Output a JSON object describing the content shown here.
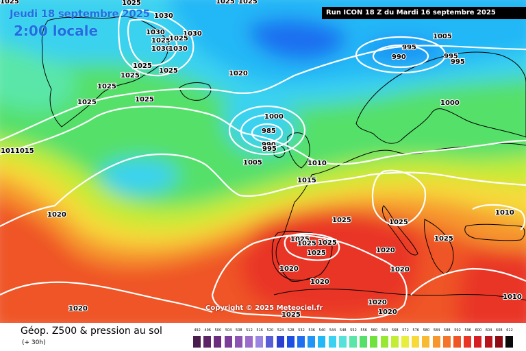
{
  "header": {
    "date_title": "Jeudi 18 septembre 2025",
    "time_title": "2:00 locale",
    "run_info": "Run ICON 18 Z du Mardi 16 septembre 2025"
  },
  "copyright": "Copyright © 2025 Meteociel.fr",
  "legend": {
    "title": "Géop. Z500 & pression au sol",
    "subtitle": "(+ 30h)",
    "scale": [
      {
        "label": "492",
        "color": "#4a1d4f"
      },
      {
        "label": "496",
        "color": "#5c2565"
      },
      {
        "label": "500",
        "color": "#6d2d7e"
      },
      {
        "label": "504",
        "color": "#7c3f99"
      },
      {
        "label": "508",
        "color": "#8c55b3"
      },
      {
        "label": "512",
        "color": "#9c6ccb"
      },
      {
        "label": "516",
        "color": "#9a86e0"
      },
      {
        "label": "520",
        "color": "#5a5ed6"
      },
      {
        "label": "524",
        "color": "#2d3fcf"
      },
      {
        "label": "528",
        "color": "#1d4fe3"
      },
      {
        "label": "532",
        "color": "#1f6ef0"
      },
      {
        "label": "536",
        "color": "#1f95f5"
      },
      {
        "label": "540",
        "color": "#22b7f6"
      },
      {
        "label": "544",
        "color": "#3ad2f0"
      },
      {
        "label": "548",
        "color": "#55e2da"
      },
      {
        "label": "552",
        "color": "#5ae6a8"
      },
      {
        "label": "556",
        "color": "#55e06a"
      },
      {
        "label": "560",
        "color": "#6fe23d"
      },
      {
        "label": "564",
        "color": "#98e833"
      },
      {
        "label": "568",
        "color": "#c3ec35"
      },
      {
        "label": "572",
        "color": "#e8ee3c"
      },
      {
        "label": "576",
        "color": "#f7d93a"
      },
      {
        "label": "580",
        "color": "#f8b933"
      },
      {
        "label": "584",
        "color": "#f6962d"
      },
      {
        "label": "588",
        "color": "#f3742a"
      },
      {
        "label": "592",
        "color": "#ef5427"
      },
      {
        "label": "596",
        "color": "#e93525"
      },
      {
        "label": "600",
        "color": "#d61f22"
      },
      {
        "label": "604",
        "color": "#b8141c"
      },
      {
        "label": "608",
        "color": "#8e0b14"
      },
      {
        "label": "612",
        "color": "#0a0a0a"
      }
    ]
  },
  "map": {
    "isobar_labels": [
      {
        "text": "1025"
      },
      {
        "text": "1030"
      },
      {
        "text": "1030"
      },
      {
        "text": "1030"
      },
      {
        "text": "1025"
      },
      {
        "text": "1025"
      },
      {
        "text": "1030"
      },
      {
        "text": "1030"
      },
      {
        "text": "1025"
      },
      {
        "text": "1025"
      },
      {
        "text": "1025"
      },
      {
        "text": "1025"
      },
      {
        "text": "1025"
      },
      {
        "text": "1025"
      },
      {
        "text": "1025"
      },
      {
        "text": "1025"
      },
      {
        "text": "1025"
      },
      {
        "text": "1005"
      },
      {
        "text": "995"
      },
      {
        "text": "990"
      },
      {
        "text": "995"
      },
      {
        "text": "995"
      },
      {
        "text": "1020"
      },
      {
        "text": "1000"
      },
      {
        "text": "1000"
      },
      {
        "text": "985"
      },
      {
        "text": "990"
      },
      {
        "text": "995"
      },
      {
        "text": "1005"
      },
      {
        "text": "1010"
      },
      {
        "text": "1015"
      },
      {
        "text": "1010"
      },
      {
        "text": "1011015"
      },
      {
        "text": "1020"
      },
      {
        "text": "1025"
      },
      {
        "text": "1025"
      },
      {
        "text": "1025"
      },
      {
        "text": "1025"
      },
      {
        "text": "1025"
      },
      {
        "text": "1025"
      },
      {
        "text": "1025"
      },
      {
        "text": "1020"
      },
      {
        "text": "1020"
      },
      {
        "text": "1020"
      },
      {
        "text": "1020"
      },
      {
        "text": "1020"
      },
      {
        "text": "1020"
      },
      {
        "text": "1020"
      },
      {
        "text": "1010"
      },
      {
        "text": "1025"
      },
      {
        "text": "1025"
      }
    ]
  }
}
